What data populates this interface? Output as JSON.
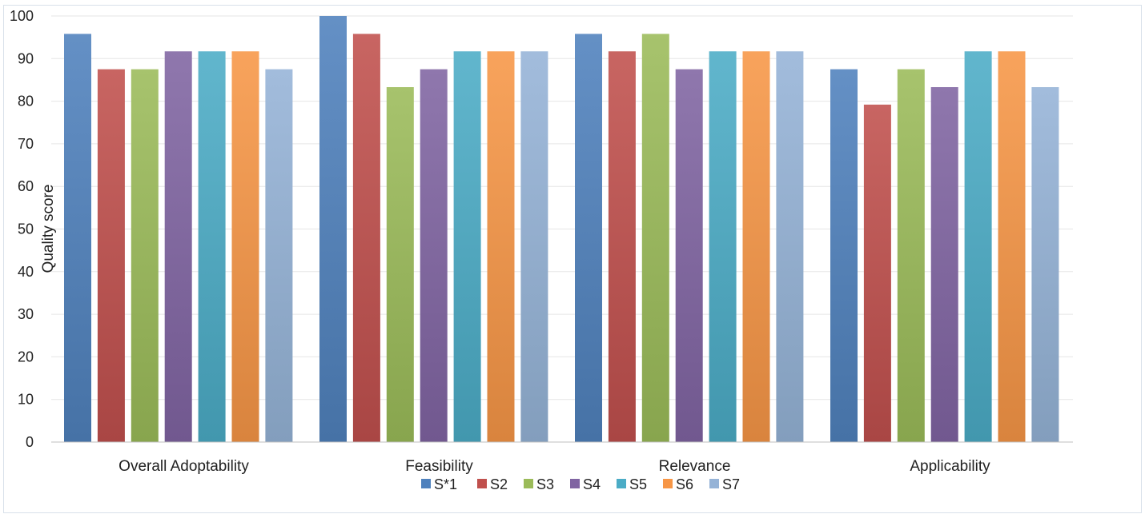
{
  "chart_data": {
    "type": "bar",
    "title": "",
    "xlabel": "",
    "ylabel": "Quality score",
    "ylim": [
      0,
      100
    ],
    "yticks": [
      0,
      10,
      20,
      30,
      40,
      50,
      60,
      70,
      80,
      90,
      100
    ],
    "categories": [
      "Overall Adoptability",
      "Feasibility",
      "Relevance",
      "Applicability"
    ],
    "series": [
      {
        "name": "S*1",
        "color": "#4f81bd",
        "values": [
          95.8,
          100,
          95.8,
          87.5
        ]
      },
      {
        "name": "S2",
        "color": "#c0504d",
        "values": [
          87.5,
          95.8,
          91.7,
          79.2
        ]
      },
      {
        "name": "S3",
        "color": "#9bbb59",
        "values": [
          87.5,
          83.3,
          95.8,
          87.5
        ]
      },
      {
        "name": "S4",
        "color": "#8064a2",
        "values": [
          91.7,
          87.5,
          87.5,
          83.3
        ]
      },
      {
        "name": "S5",
        "color": "#4bacc6",
        "values": [
          91.7,
          91.7,
          91.7,
          91.7
        ]
      },
      {
        "name": "S6",
        "color": "#f79646",
        "values": [
          91.7,
          91.7,
          91.7,
          91.7
        ]
      },
      {
        "name": "S7",
        "color": "#95b3d7",
        "values": [
          87.5,
          91.7,
          91.7,
          83.3
        ]
      }
    ],
    "grid": true,
    "legend_position": "bottom"
  }
}
